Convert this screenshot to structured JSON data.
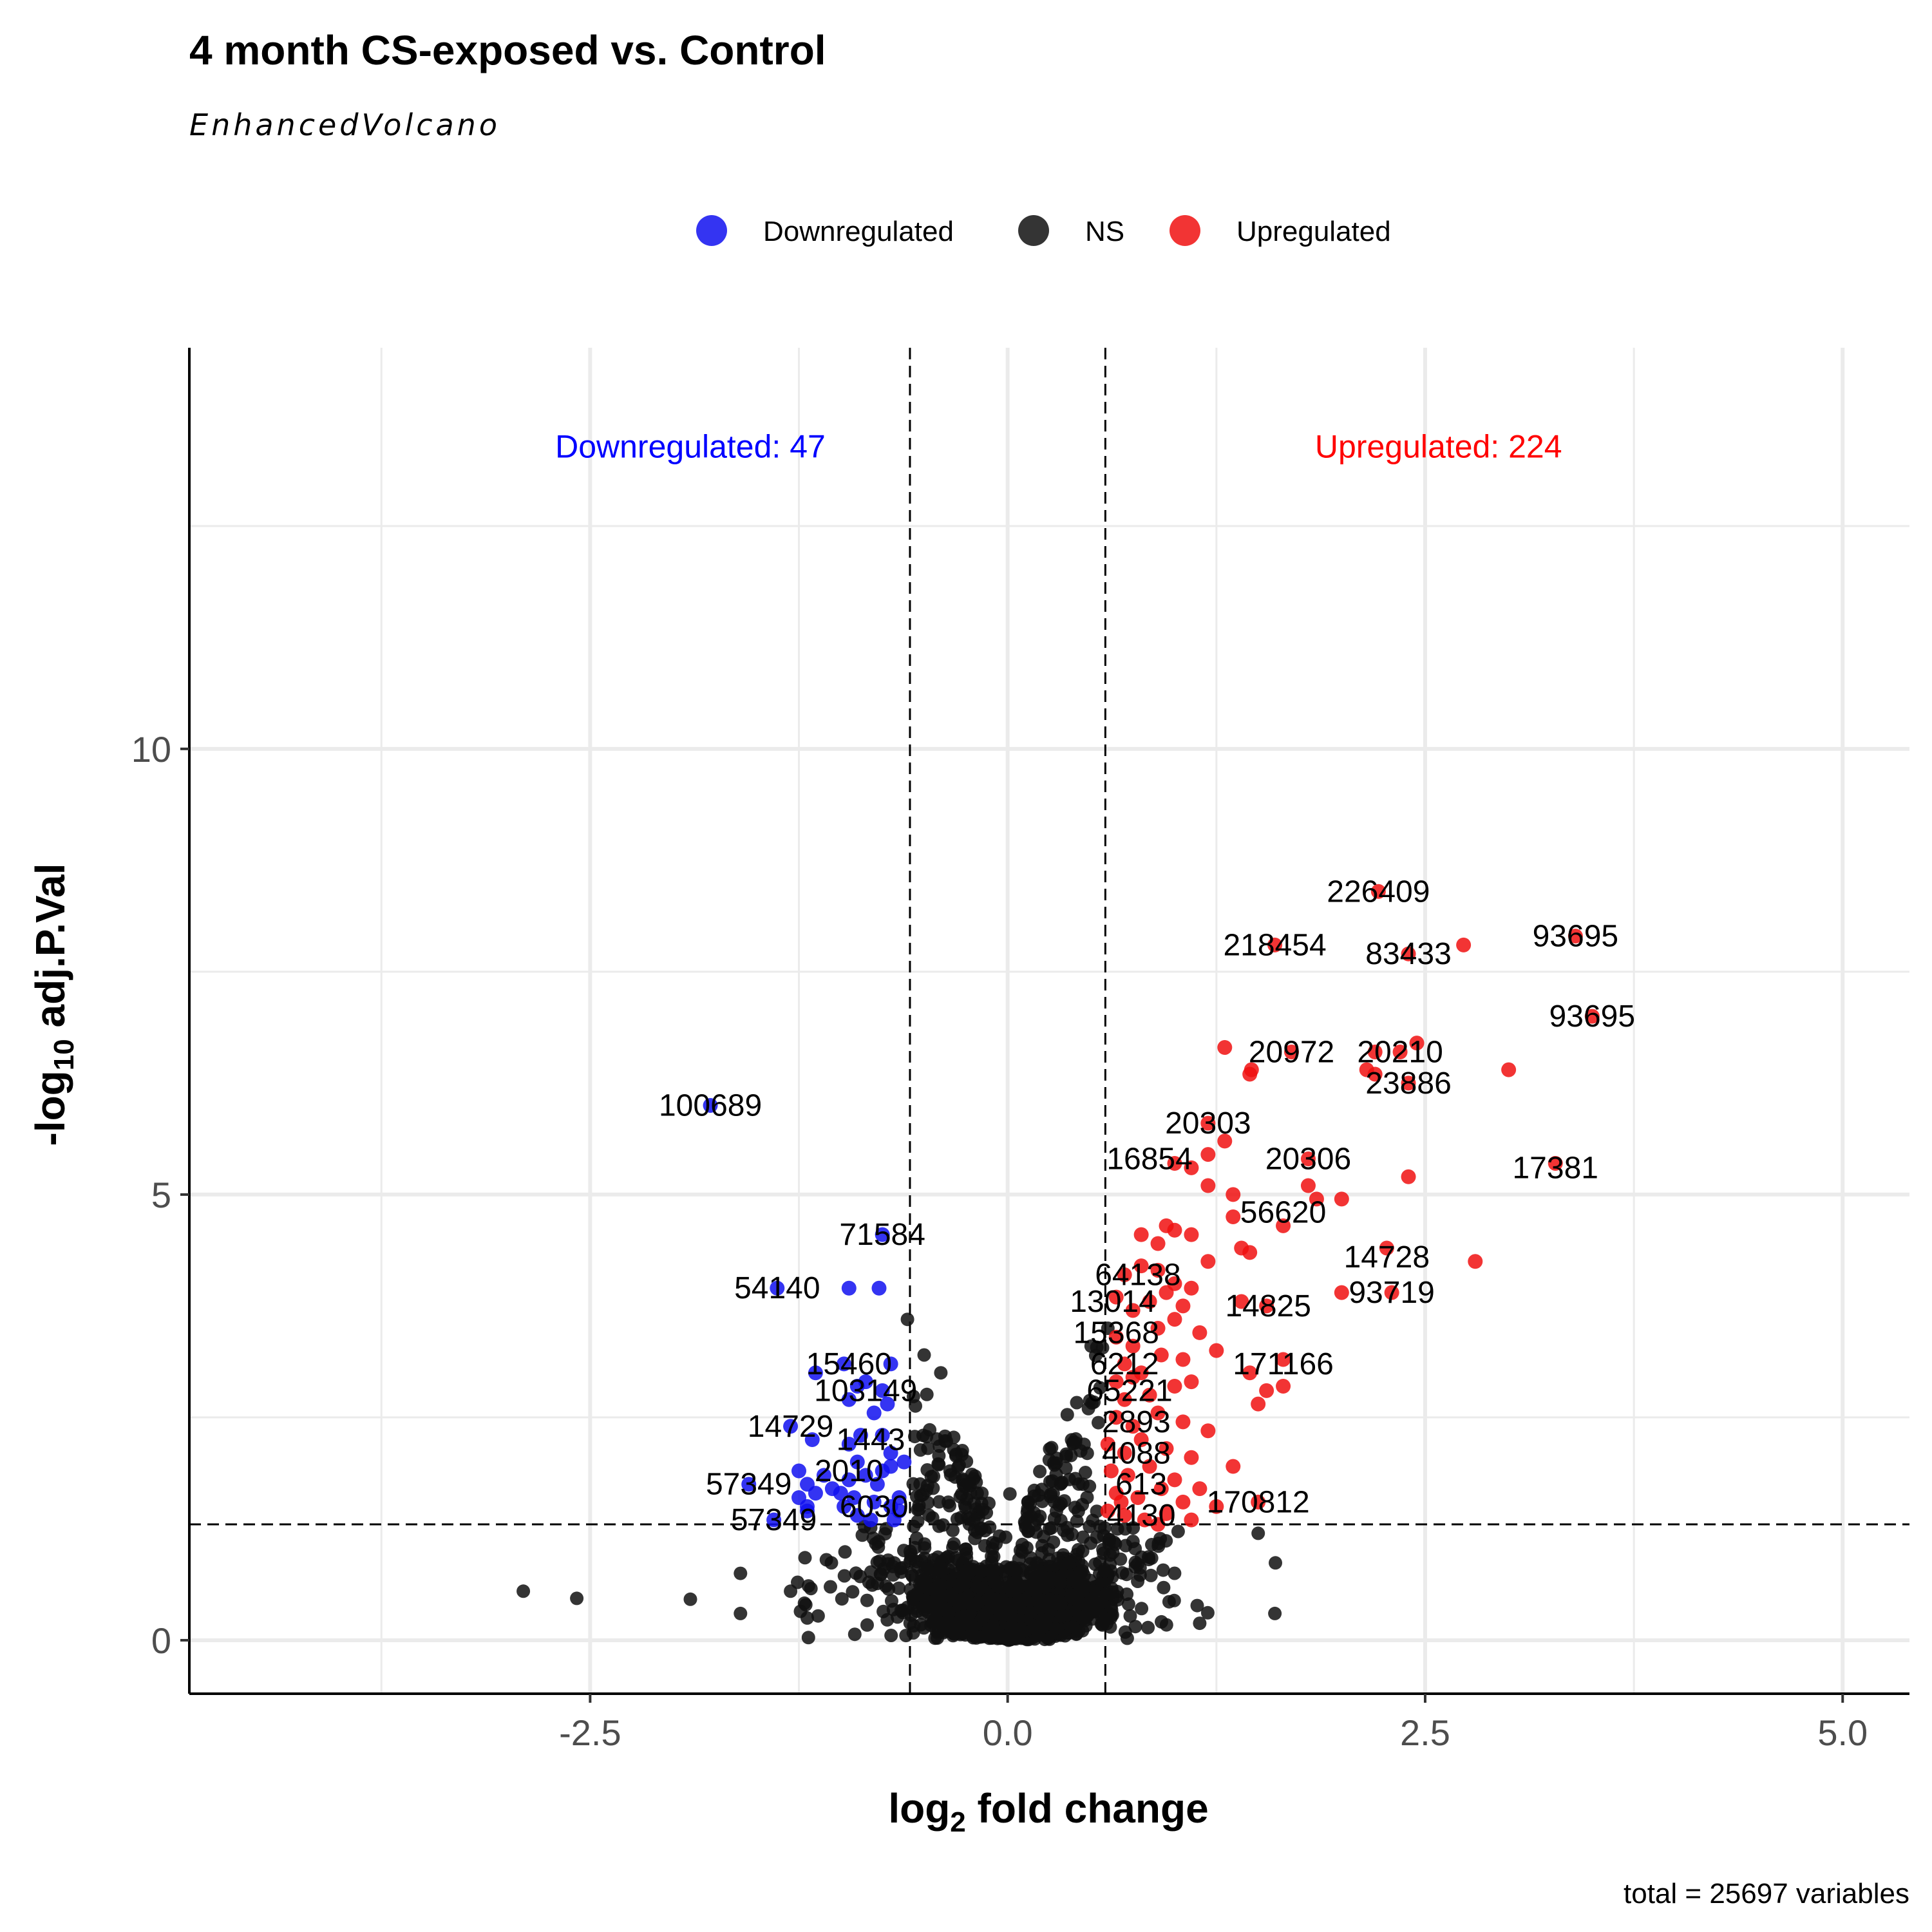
{
  "chart_data": {
    "type": "scatter",
    "title": "4 month CS-exposed vs. Control",
    "subtitle": "EnhancedVolcano",
    "xlabel_main": "log",
    "xlabel_sub": "2",
    "xlabel_rest": " fold change",
    "ylabel_main": "-log",
    "ylabel_sub": "10",
    "ylabel_rest": " adj.P.Val",
    "caption": "total = 25697 variables",
    "xlim": [
      -4.9,
      5.4
    ],
    "ylim": [
      -0.6,
      14.5
    ],
    "x_ticks": [
      -2.5,
      0.0,
      2.5,
      5.0
    ],
    "x_tick_labels": [
      "-2.5",
      "0.0",
      "2.5",
      "5.0"
    ],
    "y_ticks": [
      0,
      5,
      10
    ],
    "y_tick_labels": [
      "0",
      "5",
      "10"
    ],
    "fc_cutoffs": [
      -0.585,
      0.585
    ],
    "p_cutoff": 1.3,
    "legend": {
      "position": "top",
      "entries": [
        {
          "name": "Downregulated",
          "color": "#1010f0"
        },
        {
          "name": "NS",
          "color": "#111111"
        },
        {
          "name": "Upregulated",
          "color": "#f01010"
        }
      ]
    },
    "annotations": [
      {
        "text": "Downregulated:  47",
        "x": -1.9,
        "y": 13.4,
        "color": "#0000ff"
      },
      {
        "text": "Upregulated:  224",
        "x": 2.58,
        "y": 13.4,
        "color": "#ff0000"
      }
    ],
    "colors": {
      "down": "#1010f0",
      "ns": "#111111",
      "up": "#f01010",
      "grid": "#ebebeb"
    },
    "ns_cloud": {
      "count": 2600,
      "description_points": [
        [
          -2.9,
          0.55
        ],
        [
          -2.58,
          0.47
        ],
        [
          -1.9,
          0.46
        ],
        [
          -1.6,
          0.75
        ],
        [
          -1.6,
          0.3
        ],
        [
          -1.3,
          0.55
        ],
        [
          -1.2,
          0.25
        ],
        [
          -0.6,
          3.6
        ],
        [
          -0.5,
          3.2
        ],
        [
          -0.4,
          3.0
        ],
        [
          0.6,
          3.5
        ],
        [
          0.5,
          3.3
        ],
        [
          1.5,
          1.2
        ],
        [
          1.6,
          0.3
        ]
      ]
    },
    "down_points": [
      [
        -1.78,
        6.0
      ],
      [
        -0.75,
        4.55
      ],
      [
        -1.38,
        3.95
      ],
      [
        -0.95,
        3.95
      ],
      [
        -0.77,
        3.95
      ],
      [
        -1.15,
        3.0
      ],
      [
        -0.98,
        3.1
      ],
      [
        -0.9,
        2.85
      ],
      [
        -0.7,
        3.1
      ],
      [
        -0.75,
        2.8
      ],
      [
        -0.85,
        2.9
      ],
      [
        -0.8,
        2.55
      ],
      [
        -0.72,
        2.65
      ],
      [
        -0.95,
        2.7
      ],
      [
        -1.3,
        2.4
      ],
      [
        -1.17,
        2.25
      ],
      [
        -0.95,
        2.2
      ],
      [
        -0.9,
        2.0
      ],
      [
        -0.75,
        2.3
      ],
      [
        -0.7,
        2.1
      ],
      [
        -1.25,
        1.9
      ],
      [
        -1.2,
        1.75
      ],
      [
        -1.05,
        1.7
      ],
      [
        -0.95,
        1.8
      ],
      [
        -0.85,
        1.85
      ],
      [
        -0.78,
        1.75
      ],
      [
        -0.7,
        1.95
      ],
      [
        -0.65,
        1.6
      ],
      [
        -1.55,
        1.75
      ],
      [
        -1.25,
        1.6
      ],
      [
        -1.2,
        1.5
      ],
      [
        -1.15,
        1.65
      ],
      [
        -1.0,
        1.65
      ],
      [
        -0.92,
        1.6
      ],
      [
        -0.8,
        1.55
      ],
      [
        -0.7,
        1.5
      ],
      [
        -0.65,
        1.45
      ],
      [
        -0.9,
        1.4
      ],
      [
        -0.82,
        1.35
      ],
      [
        -0.68,
        1.35
      ],
      [
        -1.4,
        1.35
      ],
      [
        -1.2,
        1.45
      ],
      [
        -0.75,
        1.9
      ],
      [
        -0.62,
        2.0
      ],
      [
        -0.88,
        2.3
      ],
      [
        -1.1,
        1.85
      ],
      [
        -0.98,
        1.5
      ]
    ],
    "up_points": [
      [
        2.22,
        8.4
      ],
      [
        3.4,
        7.9
      ],
      [
        2.73,
        7.8
      ],
      [
        1.6,
        7.8
      ],
      [
        2.4,
        7.7
      ],
      [
        3.5,
        7.0
      ],
      [
        1.3,
        6.65
      ],
      [
        1.7,
        6.6
      ],
      [
        2.2,
        6.6
      ],
      [
        2.35,
        6.6
      ],
      [
        2.45,
        6.7
      ],
      [
        1.45,
        6.35
      ],
      [
        1.46,
        6.4
      ],
      [
        2.15,
        6.4
      ],
      [
        2.2,
        6.35
      ],
      [
        3.0,
        6.4
      ],
      [
        2.4,
        6.25
      ],
      [
        1.2,
        5.8
      ],
      [
        1.3,
        5.6
      ],
      [
        1.0,
        5.35
      ],
      [
        1.1,
        5.3
      ],
      [
        1.2,
        5.45
      ],
      [
        1.8,
        5.4
      ],
      [
        2.4,
        5.2
      ],
      [
        3.28,
        5.35
      ],
      [
        1.8,
        5.1
      ],
      [
        1.2,
        5.1
      ],
      [
        1.35,
        5.0
      ],
      [
        1.85,
        4.95
      ],
      [
        2.0,
        4.95
      ],
      [
        1.35,
        4.75
      ],
      [
        1.65,
        4.65
      ],
      [
        0.8,
        4.55
      ],
      [
        0.9,
        4.45
      ],
      [
        1.0,
        4.6
      ],
      [
        1.1,
        4.55
      ],
      [
        0.95,
        4.65
      ],
      [
        1.4,
        4.4
      ],
      [
        1.45,
        4.35
      ],
      [
        2.27,
        4.4
      ],
      [
        2.8,
        4.25
      ],
      [
        1.2,
        4.25
      ],
      [
        0.7,
        4.1
      ],
      [
        0.8,
        4.2
      ],
      [
        0.9,
        4.15
      ],
      [
        1.0,
        4.0
      ],
      [
        1.1,
        3.95
      ],
      [
        0.65,
        3.85
      ],
      [
        0.75,
        3.7
      ],
      [
        0.85,
        3.8
      ],
      [
        0.95,
        3.9
      ],
      [
        1.05,
        3.75
      ],
      [
        1.4,
        3.8
      ],
      [
        2.0,
        3.9
      ],
      [
        2.3,
        3.9
      ],
      [
        1.55,
        3.75
      ],
      [
        0.65,
        3.4
      ],
      [
        0.75,
        3.3
      ],
      [
        0.9,
        3.5
      ],
      [
        1.0,
        3.6
      ],
      [
        1.15,
        3.45
      ],
      [
        0.7,
        3.1
      ],
      [
        0.8,
        3.0
      ],
      [
        0.92,
        3.2
      ],
      [
        1.05,
        3.15
      ],
      [
        1.25,
        3.25
      ],
      [
        1.45,
        3.0
      ],
      [
        1.65,
        3.15
      ],
      [
        1.55,
        2.8
      ],
      [
        1.65,
        2.85
      ],
      [
        1.5,
        2.65
      ],
      [
        0.65,
        2.9
      ],
      [
        0.7,
        2.7
      ],
      [
        0.85,
        2.75
      ],
      [
        1.0,
        2.85
      ],
      [
        1.1,
        2.9
      ],
      [
        0.65,
        2.5
      ],
      [
        0.75,
        2.4
      ],
      [
        0.9,
        2.55
      ],
      [
        1.05,
        2.45
      ],
      [
        1.2,
        2.35
      ],
      [
        0.6,
        2.2
      ],
      [
        0.7,
        2.1
      ],
      [
        0.8,
        2.25
      ],
      [
        0.95,
        2.15
      ],
      [
        1.1,
        2.05
      ],
      [
        0.62,
        1.9
      ],
      [
        0.72,
        1.85
      ],
      [
        0.85,
        1.95
      ],
      [
        1.0,
        1.8
      ],
      [
        1.35,
        1.95
      ],
      [
        0.65,
        1.65
      ],
      [
        0.78,
        1.6
      ],
      [
        0.92,
        1.7
      ],
      [
        1.05,
        1.55
      ],
      [
        1.15,
        1.7
      ],
      [
        0.6,
        1.45
      ],
      [
        0.7,
        1.4
      ],
      [
        0.82,
        1.35
      ],
      [
        0.95,
        1.42
      ],
      [
        1.1,
        1.35
      ],
      [
        1.5,
        1.55
      ],
      [
        1.25,
        1.5
      ],
      [
        0.9,
        1.3
      ],
      [
        0.68,
        1.55
      ],
      [
        0.75,
        2.95
      ]
    ],
    "labels": [
      {
        "text": "226409",
        "x": 2.22,
        "y": 8.4
      },
      {
        "text": "93695",
        "x": 3.4,
        "y": 7.9
      },
      {
        "text": "218454",
        "x": 1.6,
        "y": 7.8
      },
      {
        "text": "83433",
        "x": 2.4,
        "y": 7.7
      },
      {
        "text": "93695",
        "x": 3.5,
        "y": 7.0
      },
      {
        "text": "20972",
        "x": 1.7,
        "y": 6.6
      },
      {
        "text": "20210",
        "x": 2.35,
        "y": 6.6
      },
      {
        "text": "23886",
        "x": 2.4,
        "y": 6.25
      },
      {
        "text": "100689",
        "x": -1.78,
        "y": 6.0
      },
      {
        "text": "20303",
        "x": 1.2,
        "y": 5.8
      },
      {
        "text": "16854",
        "x": 0.85,
        "y": 5.4
      },
      {
        "text": "20306",
        "x": 1.8,
        "y": 5.4
      },
      {
        "text": "17381",
        "x": 3.28,
        "y": 5.3
      },
      {
        "text": "56620",
        "x": 1.65,
        "y": 4.8
      },
      {
        "text": "71584",
        "x": -0.75,
        "y": 4.55
      },
      {
        "text": "14728",
        "x": 2.27,
        "y": 4.3
      },
      {
        "text": "64138",
        "x": 0.78,
        "y": 4.1
      },
      {
        "text": "54140",
        "x": -1.38,
        "y": 3.95
      },
      {
        "text": "93719",
        "x": 2.3,
        "y": 3.9
      },
      {
        "text": "13014",
        "x": 0.63,
        "y": 3.8
      },
      {
        "text": "14825",
        "x": 1.56,
        "y": 3.75
      },
      {
        "text": "15368",
        "x": 0.65,
        "y": 3.45
      },
      {
        "text": "6212",
        "x": 0.7,
        "y": 3.1
      },
      {
        "text": "15460",
        "x": -0.95,
        "y": 3.1
      },
      {
        "text": "171166",
        "x": 1.65,
        "y": 3.1
      },
      {
        "text": "103149",
        "x": -0.85,
        "y": 2.8
      },
      {
        "text": "65221",
        "x": 0.73,
        "y": 2.8
      },
      {
        "text": "14729",
        "x": -1.3,
        "y": 2.4
      },
      {
        "text": "2893",
        "x": 0.77,
        "y": 2.45
      },
      {
        "text": "1443",
        "x": -0.82,
        "y": 2.25
      },
      {
        "text": "4088",
        "x": 0.77,
        "y": 2.1
      },
      {
        "text": "2010",
        "x": -0.95,
        "y": 1.9
      },
      {
        "text": "57349",
        "x": -1.55,
        "y": 1.75
      },
      {
        "text": "613",
        "x": 0.8,
        "y": 1.75
      },
      {
        "text": "6030",
        "x": -0.8,
        "y": 1.5
      },
      {
        "text": "170812",
        "x": 1.5,
        "y": 1.55
      },
      {
        "text": "57349",
        "x": -1.4,
        "y": 1.35
      },
      {
        "text": "4130",
        "x": 0.8,
        "y": 1.4
      }
    ]
  }
}
